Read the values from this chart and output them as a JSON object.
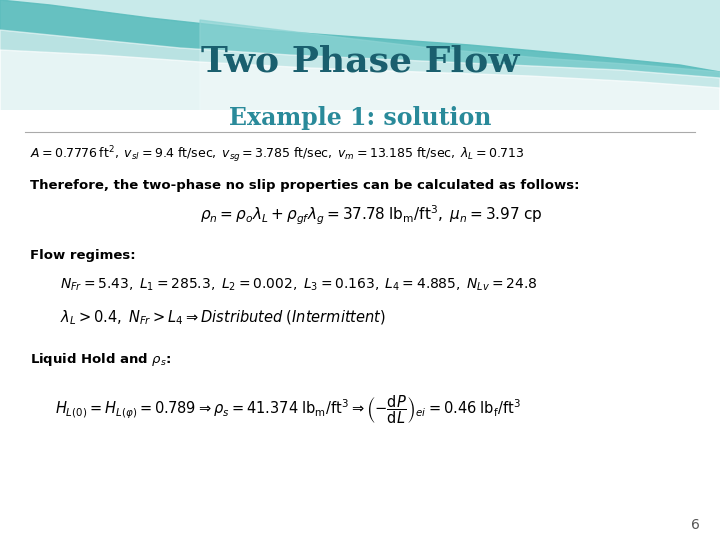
{
  "title": "Two Phase Flow",
  "subtitle": "Example 1: solution",
  "title_color": "#1a5f6e",
  "subtitle_color": "#2a8a9a",
  "bg_color": "#ffffff",
  "page_number": "6"
}
